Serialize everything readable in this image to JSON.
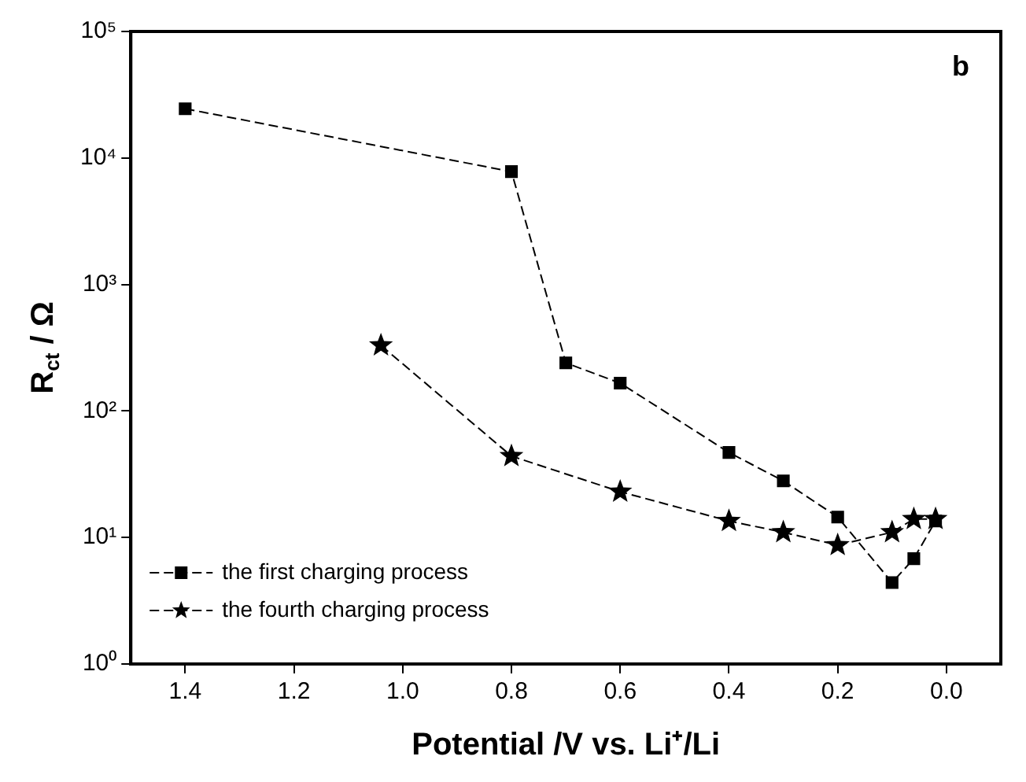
{
  "chart_data": {
    "type": "line",
    "xlabel": "Potential /V vs. Li⁺/Li",
    "ylabel": "R$_{ct}$ / Ω",
    "annotations": [
      "b"
    ],
    "log": "y",
    "legend": "bottom left",
    "grid": false,
    "line_style": "dashed",
    "xlim": [
      1.5,
      -0.1
    ],
    "xticks": [
      {
        "value": 1.4,
        "label": "1.4"
      },
      {
        "value": 1.2,
        "label": "1.2"
      },
      {
        "value": 1.0,
        "label": "1.0"
      },
      {
        "value": 0.8,
        "label": "0.8"
      },
      {
        "value": 0.6,
        "label": "0.6"
      },
      {
        "value": 0.4,
        "label": "0.4"
      },
      {
        "value": 0.2,
        "label": "0.2"
      },
      {
        "value": 0,
        "label": "0.0"
      }
    ],
    "ylim": [
      1,
      100000
    ],
    "yticks": [
      {
        "value": 1,
        "label": "10⁰"
      },
      {
        "value": 10,
        "label": "10¹"
      },
      {
        "value": 100,
        "label": "10²"
      },
      {
        "value": 1000,
        "label": "10³"
      },
      {
        "value": 10000,
        "label": "10⁴"
      },
      {
        "value": 100000,
        "label": "10⁵"
      }
    ],
    "series": [
      {
        "name": "the first charging process",
        "color": "#000000",
        "marker": "square",
        "x": [
          1.4,
          0.8,
          0.7,
          0.6,
          0.4,
          0.3,
          0.2,
          0.1,
          0.06,
          0.02
        ],
        "values": [
          24500,
          7800,
          240,
          166,
          47,
          28,
          14.5,
          4.4,
          6.8,
          13.5
        ]
      },
      {
        "name": "the fourth charging process",
        "color": "#000000",
        "marker": "star",
        "x": [
          1.04,
          0.8,
          0.6,
          0.4,
          0.3,
          0.2,
          0.1,
          0.06,
          0.02
        ],
        "values": [
          330,
          44,
          23,
          13.5,
          11,
          8.7,
          11,
          14,
          14
        ]
      }
    ]
  }
}
